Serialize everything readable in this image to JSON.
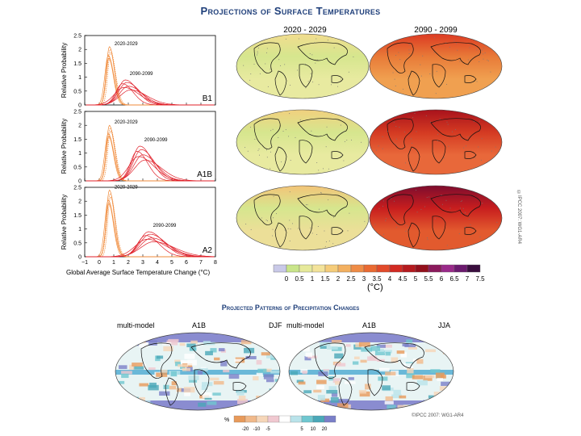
{
  "title": "Projections of Surface Temperatures",
  "subtitle": "Projected Patterns of Precipitation Changes",
  "chart_data": [
    {
      "type": "line",
      "scenario": "B1",
      "title": "B1",
      "ylabel": "Relative Probability",
      "xlabel": "Global Average Surface Temperature Change (°C)",
      "xlim": [
        -1,
        8
      ],
      "ylim": [
        0,
        2.5
      ],
      "yticks": [
        "0",
        "0.5",
        "1",
        "1.5",
        "2",
        "2.5"
      ],
      "series": [
        {
          "name": "2020-2029",
          "peak_x": 0.7,
          "peak_y": 2.1,
          "spread": 0.25
        },
        {
          "name": "2090-2099",
          "peak_x": 1.8,
          "peak_y": 0.9,
          "spread": 0.6
        }
      ]
    },
    {
      "type": "line",
      "scenario": "A1B",
      "title": "A1B",
      "ylabel": "Relative Probability",
      "xlim": [
        -1,
        8
      ],
      "ylim": [
        0,
        2.5
      ],
      "yticks": [
        "0",
        "0.5",
        "1",
        "1.5",
        "2",
        "2.5"
      ],
      "series": [
        {
          "name": "2020-2029",
          "peak_x": 0.7,
          "peak_y": 2.0,
          "spread": 0.25
        },
        {
          "name": "2090-2099",
          "peak_x": 2.8,
          "peak_y": 1.25,
          "spread": 0.6
        }
      ]
    },
    {
      "type": "line",
      "scenario": "A2",
      "title": "A2",
      "ylabel": "Relative Probability",
      "xlim": [
        -1,
        8
      ],
      "ylim": [
        0,
        2.5
      ],
      "yticks": [
        "0",
        "0.5",
        "1",
        "1.5",
        "2",
        "2.5"
      ],
      "xticks": [
        "−1",
        "0",
        "1",
        "2",
        "3",
        "4",
        "5",
        "6",
        "7",
        "8"
      ],
      "series": [
        {
          "name": "2020-2029",
          "peak_x": 0.7,
          "peak_y": 2.4,
          "spread": 0.25
        },
        {
          "name": "2090-2099",
          "peak_x": 3.4,
          "peak_y": 0.9,
          "spread": 0.75
        }
      ]
    }
  ],
  "maps": {
    "col1": "2020 - 2029",
    "col2": "2090 - 2099",
    "colorbar_ticks": [
      "0",
      "0.5",
      "1",
      "1.5",
      "2",
      "2.5",
      "3",
      "3.5",
      "4",
      "4.5",
      "5",
      "5.5",
      "6",
      "6.5",
      "7",
      "7.5"
    ],
    "colorbar_unit": "(°C)",
    "colorbar_colors": [
      "#c9c9e8",
      "#c9e58a",
      "#e6e99a",
      "#f3e39a",
      "#f5cc7a",
      "#f3b060",
      "#ef8c46",
      "#ea6a32",
      "#e24a2a",
      "#d22a22",
      "#b51a1e",
      "#93101c",
      "#8b1a5c",
      "#9a2a8a",
      "#6b1a6e",
      "#3a0e3e"
    ],
    "credit": "©IPCC 2007: WG1-AR4"
  },
  "precip": {
    "left_labels": [
      "multi-model",
      "A1B",
      "DJF"
    ],
    "right_labels": [
      "multi-model",
      "A1B",
      "JJA"
    ],
    "legend_unit": "%",
    "legend_ticks": [
      "-20",
      "-10",
      "-5",
      "5",
      "10",
      "20"
    ],
    "legend_colors": [
      "#e89a5a",
      "#f1b98a",
      "#f6d6b8",
      "#f0c8d0",
      "#ffffff",
      "#b9e3ea",
      "#6fc7d0",
      "#4aa8b8",
      "#7a7fc8"
    ],
    "credit": "©IPCC 2007: WG1-AR4"
  }
}
